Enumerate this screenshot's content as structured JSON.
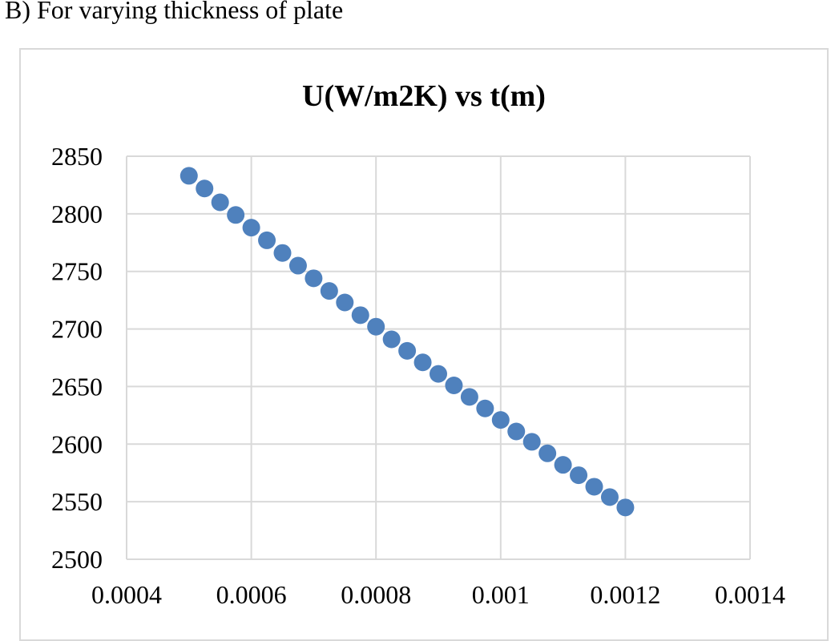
{
  "heading": "B) For varying thickness of plate",
  "chart_data": {
    "type": "scatter",
    "title": "U(W/m2K) vs t(m)",
    "xlabel": "",
    "ylabel": "",
    "xlim": [
      0.0004,
      0.0014
    ],
    "ylim": [
      2500,
      2850
    ],
    "x_ticks": [
      0.0004,
      0.0006,
      0.0008,
      0.001,
      0.0012,
      0.0014
    ],
    "x_tick_labels": [
      "0.0004",
      "0.0006",
      "0.0008",
      "0.001",
      "0.0012",
      "0.0014"
    ],
    "y_ticks": [
      2500,
      2550,
      2600,
      2650,
      2700,
      2750,
      2800,
      2850
    ],
    "y_tick_labels": [
      "2500",
      "2550",
      "2600",
      "2650",
      "2700",
      "2750",
      "2800",
      "2850"
    ],
    "grid": true,
    "legend": "none",
    "marker_color": "#4f81bd",
    "series": [
      {
        "x": [
          0.0005,
          0.000525,
          0.00055,
          0.000575,
          0.0006,
          0.000625,
          0.00065,
          0.000675,
          0.0007,
          0.000725,
          0.00075,
          0.000775,
          0.0008,
          0.000825,
          0.00085,
          0.000875,
          0.0009,
          0.000925,
          0.00095,
          0.000975,
          0.001,
          0.001025,
          0.00105,
          0.001075,
          0.0011,
          0.001125,
          0.00115,
          0.001175,
          0.0012
        ],
        "y": [
          2833,
          2822,
          2810,
          2799,
          2788,
          2777,
          2766,
          2755,
          2744,
          2733,
          2723,
          2712,
          2702,
          2691,
          2681,
          2671,
          2661,
          2651,
          2641,
          2631,
          2621,
          2611,
          2602,
          2592,
          2582,
          2573,
          2563,
          2554,
          2545
        ]
      }
    ]
  }
}
